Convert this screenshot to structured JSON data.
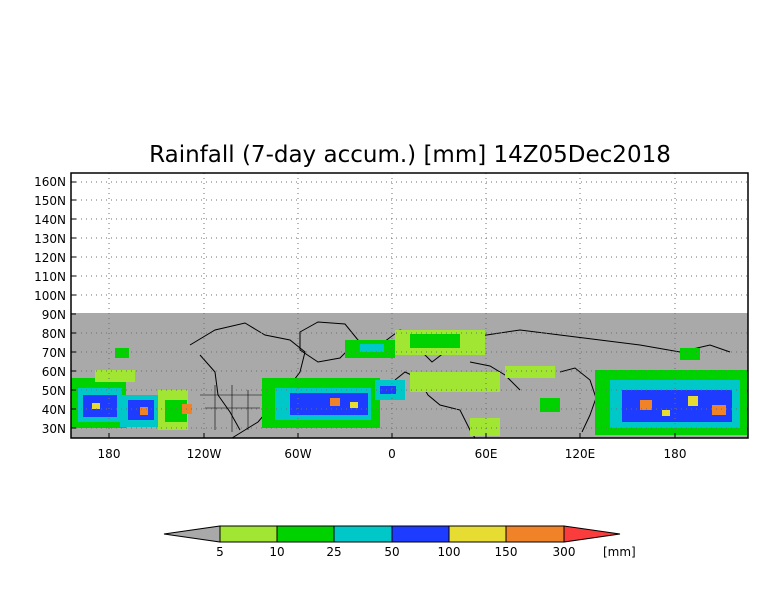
{
  "title": "Rainfall (7-day accum.) [mm] 14Z05Dec2018",
  "map": {
    "lat_labels": [
      "160N",
      "150N",
      "140N",
      "130N",
      "120N",
      "110N",
      "100N",
      "90N",
      "80N",
      "70N",
      "60N",
      "50N",
      "40N",
      "30N"
    ],
    "lon_labels": [
      "180",
      "120W",
      "60W",
      "0",
      "60E",
      "120E",
      "180"
    ],
    "no_data_color": "#a9a9a9",
    "grid": "dotted"
  },
  "colorbar": {
    "labels": [
      "5",
      "10",
      "25",
      "50",
      "100",
      "150",
      "300"
    ],
    "unit": "[mm]",
    "colors": [
      "#a9a9a9",
      "#a0e632",
      "#00d200",
      "#00c8c8",
      "#1e3cff",
      "#e6dc32",
      "#f08228",
      "#fa3c3c"
    ]
  }
}
